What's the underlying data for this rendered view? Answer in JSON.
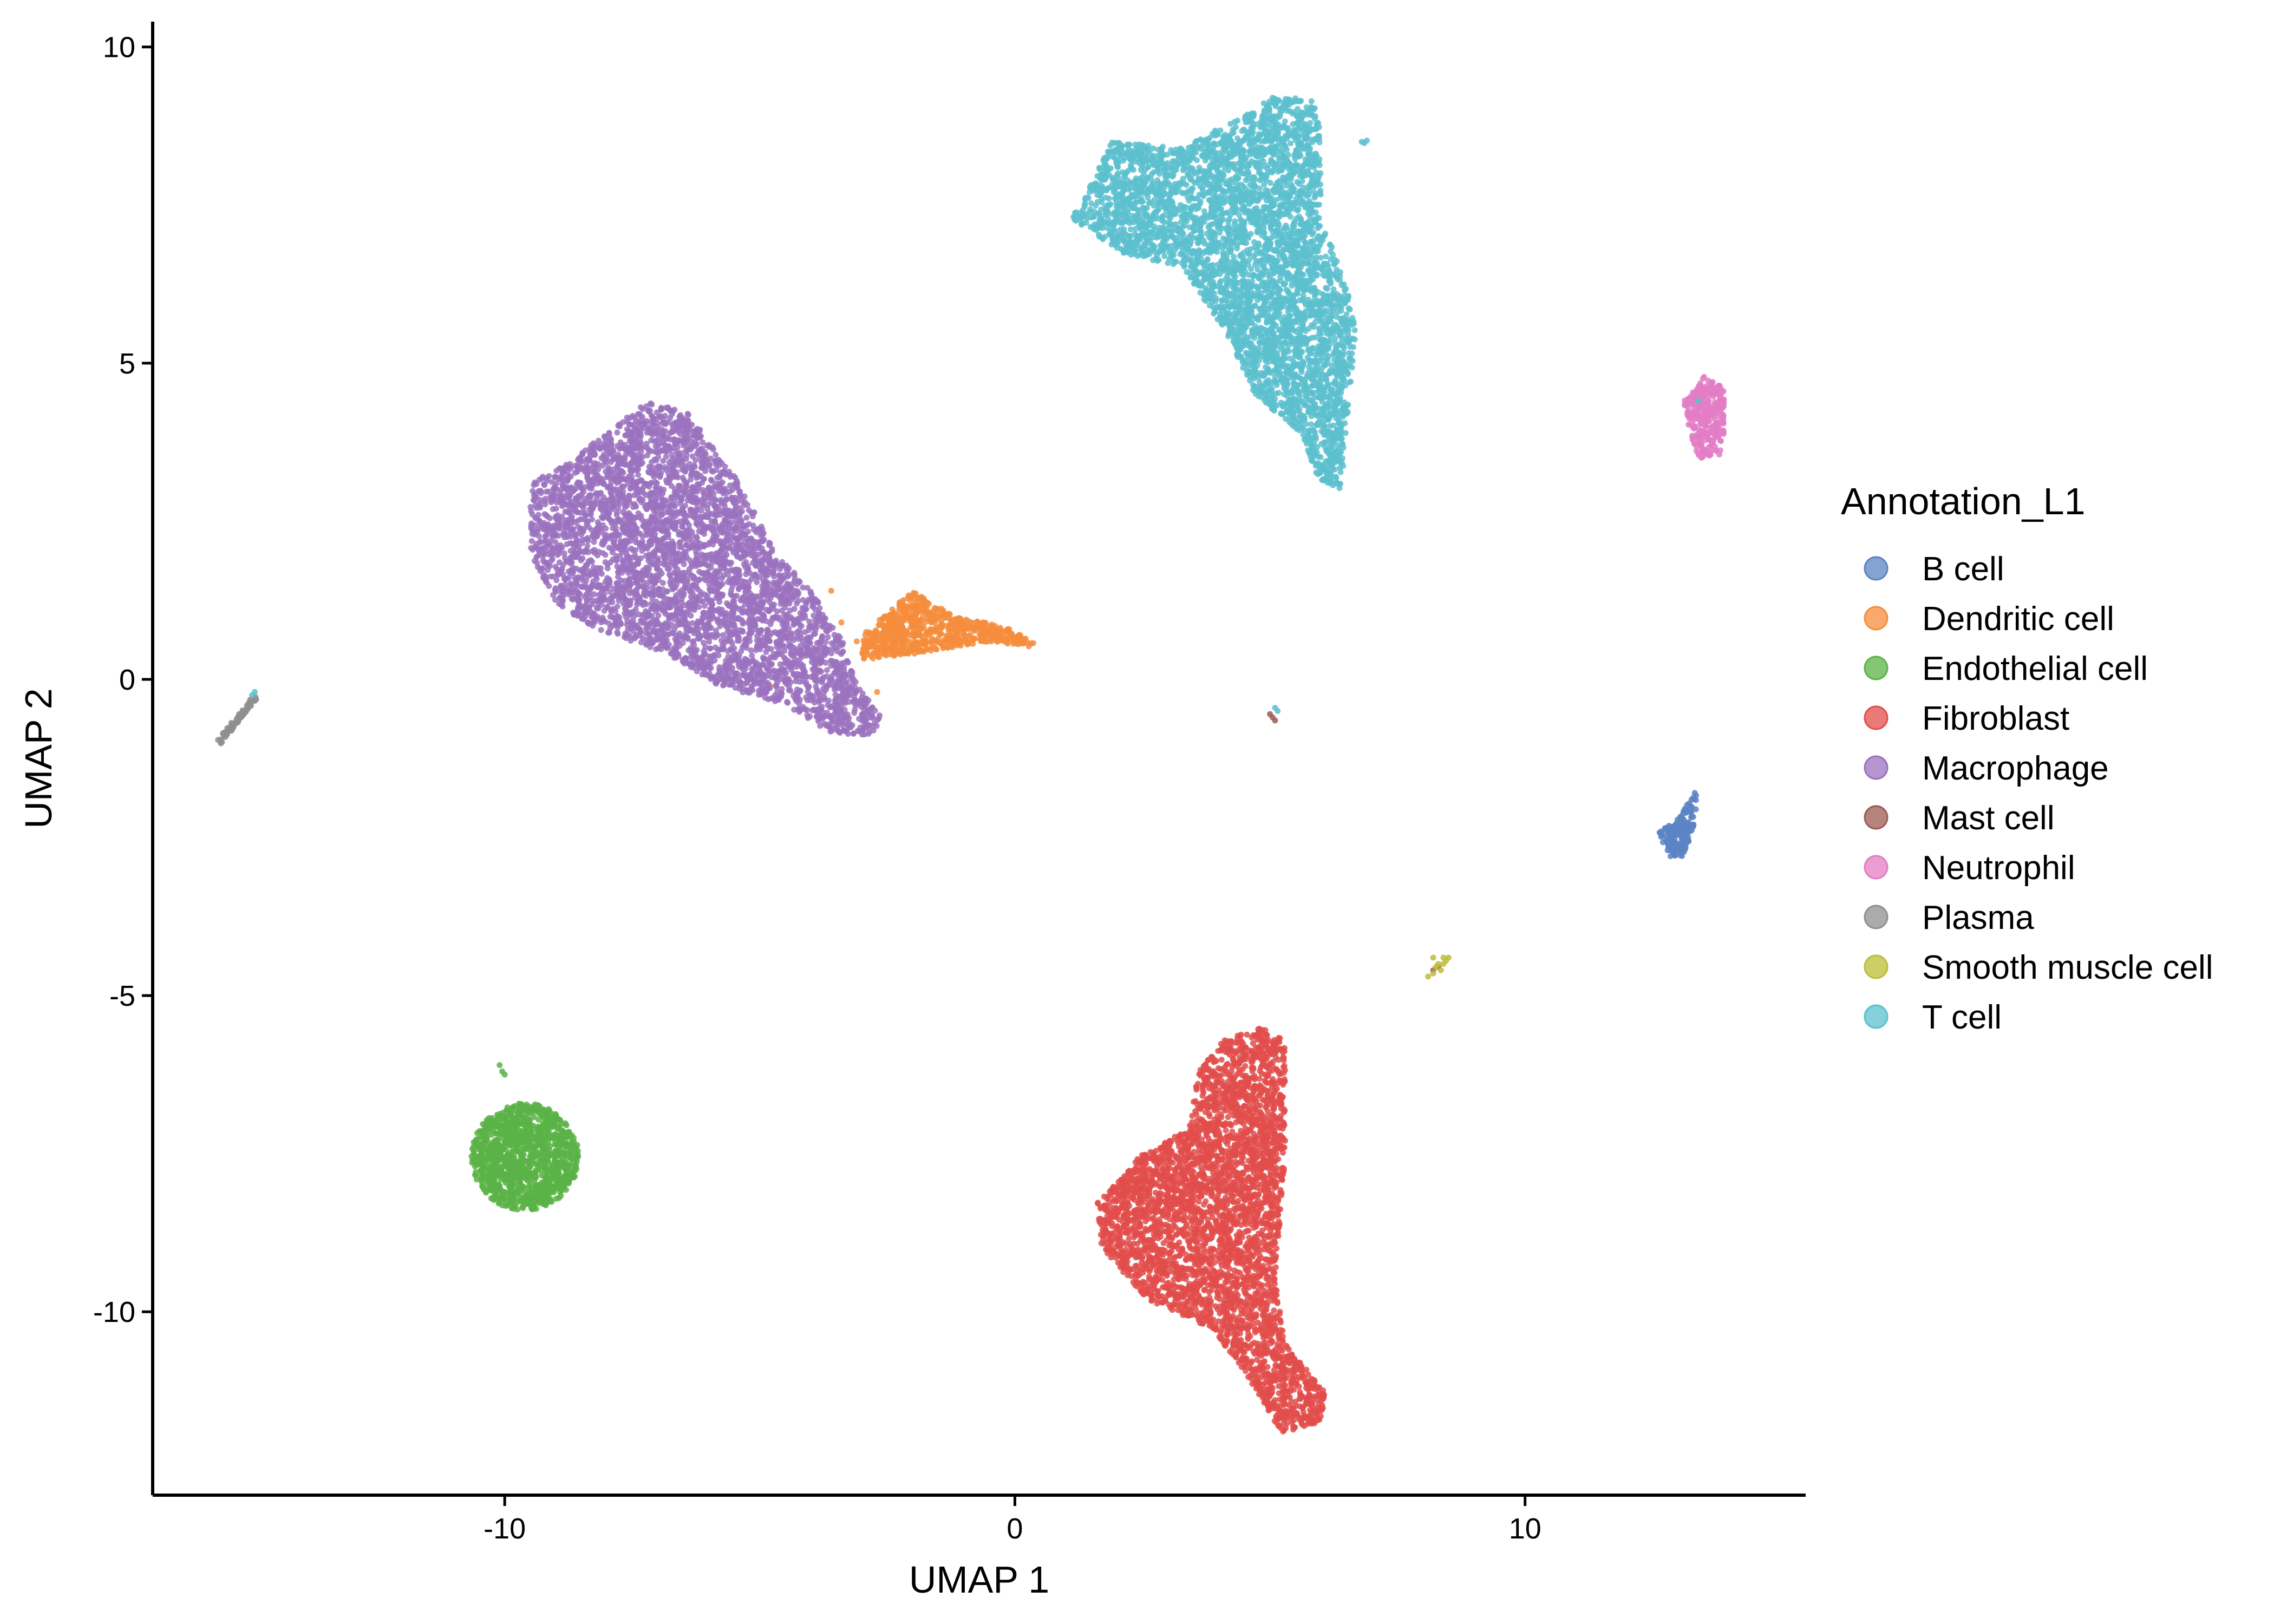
{
  "chart_data": {
    "type": "scatter",
    "xlabel": "UMAP 1",
    "ylabel": "UMAP 2",
    "xlim": [
      -16.9,
      15.5
    ],
    "ylim": [
      -12.9,
      10.4
    ],
    "x_ticks": [
      -10,
      0,
      10
    ],
    "y_ticks": [
      10,
      5,
      0,
      -5,
      -10
    ],
    "x_tick_labels": [
      "-10",
      "0",
      "10"
    ],
    "y_tick_labels": [
      "10",
      "5",
      "0",
      "-5",
      "-10"
    ],
    "grid": false,
    "legend": {
      "title": "Annotation_L1",
      "position": "right"
    },
    "series": [
      {
        "name": "B cell",
        "color": "#5B84C4",
        "regions": [
          {
            "shape": "poly",
            "pts": [
              [
                12.6,
                -2.4
              ],
              [
                13.0,
                -2.2
              ],
              [
                13.4,
                -1.7
              ],
              [
                13.3,
                -2.4
              ],
              [
                13.1,
                -2.8
              ],
              [
                12.8,
                -2.8
              ]
            ],
            "n": 160
          }
        ]
      },
      {
        "name": "Dendritic cell",
        "color": "#F58D3D",
        "regions": [
          {
            "shape": "poly",
            "pts": [
              [
                -3.0,
                0.7
              ],
              [
                -2.0,
                1.4
              ],
              [
                -1.2,
                1.0
              ],
              [
                0.0,
                0.8
              ],
              [
                0.5,
                0.5
              ],
              [
                -0.5,
                0.6
              ],
              [
                -2.0,
                0.4
              ],
              [
                -3.0,
                0.3
              ]
            ],
            "n": 700
          },
          {
            "shape": "pts",
            "pts": [
              [
                -4.5,
                1.2
              ],
              [
                -3.6,
                1.4
              ],
              [
                -4.8,
                -0.1
              ],
              [
                -4.5,
                -0.05
              ],
              [
                -3.9,
                0.2
              ],
              [
                -3.4,
                0.9
              ],
              [
                -3.1,
                0.6
              ],
              [
                -2.7,
                -0.2
              ]
            ]
          }
        ]
      },
      {
        "name": "Endothelial cell",
        "color": "#5BB346",
        "regions": [
          {
            "shape": "ellipse",
            "cx": -9.6,
            "cy": -7.55,
            "rx": 1.05,
            "ry": 0.85,
            "n": 1200
          },
          {
            "shape": "pts",
            "pts": [
              [
                -10.1,
                -6.1
              ],
              [
                -10.05,
                -6.2
              ],
              [
                -10.0,
                -6.25
              ]
            ]
          }
        ]
      },
      {
        "name": "Fibroblast",
        "color": "#E24E4B",
        "regions": [
          {
            "shape": "poly",
            "pts": [
              [
                3.6,
                -6.2
              ],
              [
                4.1,
                -5.7
              ],
              [
                4.8,
                -5.5
              ],
              [
                5.3,
                -5.7
              ],
              [
                5.3,
                -7.5
              ],
              [
                5.1,
                -9.5
              ],
              [
                5.3,
                -10.5
              ],
              [
                6.1,
                -11.3
              ],
              [
                6.0,
                -11.8
              ],
              [
                5.2,
                -11.9
              ],
              [
                4.7,
                -11.2
              ],
              [
                3.9,
                -10.3
              ],
              [
                2.6,
                -9.8
              ],
              [
                1.7,
                -9.0
              ],
              [
                1.6,
                -8.3
              ],
              [
                2.5,
                -7.5
              ],
              [
                3.4,
                -7.1
              ]
            ],
            "n": 3800
          }
        ]
      },
      {
        "name": "Macrophage",
        "color": "#9B72BE",
        "regions": [
          {
            "shape": "poly",
            "pts": [
              [
                -9.5,
                3.1
              ],
              [
                -8.8,
                3.4
              ],
              [
                -7.2,
                4.4
              ],
              [
                -6.4,
                4.2
              ],
              [
                -5.4,
                3.1
              ],
              [
                -4.7,
                2.0
              ],
              [
                -4.1,
                1.5
              ],
              [
                -3.4,
                0.7
              ],
              [
                -3.1,
                -0.1
              ],
              [
                -2.6,
                -0.6
              ],
              [
                -2.8,
                -0.9
              ],
              [
                -3.6,
                -0.85
              ],
              [
                -4.5,
                -0.4
              ],
              [
                -5.8,
                -0.1
              ],
              [
                -6.8,
                0.4
              ],
              [
                -8.2,
                0.8
              ],
              [
                -9.0,
                1.2
              ],
              [
                -9.5,
                2.0
              ]
            ],
            "n": 4200
          }
        ]
      },
      {
        "name": "Mast cell",
        "color": "#9B5B52",
        "regions": [
          {
            "shape": "pts",
            "pts": [
              [
                5.05,
                -0.6
              ],
              [
                5.1,
                -0.65
              ],
              [
                5.0,
                -0.55
              ],
              [
                8.2,
                -4.6
              ],
              [
                8.3,
                -4.55
              ]
            ]
          }
        ]
      },
      {
        "name": "Neutrophil",
        "color": "#E37DC4",
        "regions": [
          {
            "shape": "poly",
            "pts": [
              [
                13.1,
                4.4
              ],
              [
                13.5,
                4.8
              ],
              [
                13.9,
                4.6
              ],
              [
                13.9,
                3.9
              ],
              [
                13.8,
                3.5
              ],
              [
                13.4,
                3.5
              ],
              [
                13.2,
                4.0
              ]
            ],
            "n": 300
          }
        ]
      },
      {
        "name": "Plasma",
        "color": "#8F8F8F",
        "regions": [
          {
            "shape": "line",
            "from": [
              -15.6,
              -1.0
            ],
            "to": [
              -14.9,
              -0.3
            ],
            "n": 90
          }
        ]
      },
      {
        "name": "Smooth muscle cell",
        "color": "#BDBD37",
        "regions": [
          {
            "shape": "pts",
            "pts": [
              [
                8.2,
                -4.4
              ],
              [
                8.3,
                -4.5
              ],
              [
                8.4,
                -4.4
              ],
              [
                8.5,
                -4.4
              ],
              [
                8.35,
                -4.6
              ],
              [
                8.25,
                -4.55
              ],
              [
                8.4,
                -4.5
              ],
              [
                8.1,
                -4.7
              ],
              [
                8.45,
                -4.45
              ],
              [
                8.2,
                -4.65
              ]
            ]
          }
        ]
      },
      {
        "name": "T cell",
        "color": "#5CC0CE",
        "regions": [
          {
            "shape": "poly",
            "pts": [
              [
                1.3,
                7.5
              ],
              [
                1.9,
                8.5
              ],
              [
                3.2,
                8.4
              ],
              [
                4.5,
                8.9
              ],
              [
                5.0,
                9.2
              ],
              [
                5.8,
                9.2
              ],
              [
                6.0,
                8.8
              ],
              [
                6.0,
                7.3
              ],
              [
                6.5,
                6.2
              ],
              [
                6.7,
                5.5
              ],
              [
                6.5,
                4.0
              ],
              [
                6.4,
                3.0
              ],
              [
                5.9,
                3.2
              ],
              [
                5.6,
                3.9
              ],
              [
                4.7,
                4.5
              ],
              [
                4.2,
                5.4
              ],
              [
                3.3,
                6.5
              ],
              [
                2.2,
                6.7
              ],
              [
                1.1,
                7.3
              ]
            ],
            "n": 4200
          },
          {
            "shape": "pts",
            "pts": [
              [
                6.8,
                8.5
              ],
              [
                6.9,
                8.52
              ],
              [
                6.85,
                8.48
              ],
              [
                5.1,
                -0.45
              ],
              [
                5.15,
                -0.5
              ],
              [
                -14.95,
                -0.25
              ],
              [
                -14.9,
                -0.2
              ],
              [
                13.4,
                4.4
              ]
            ]
          }
        ]
      }
    ]
  }
}
